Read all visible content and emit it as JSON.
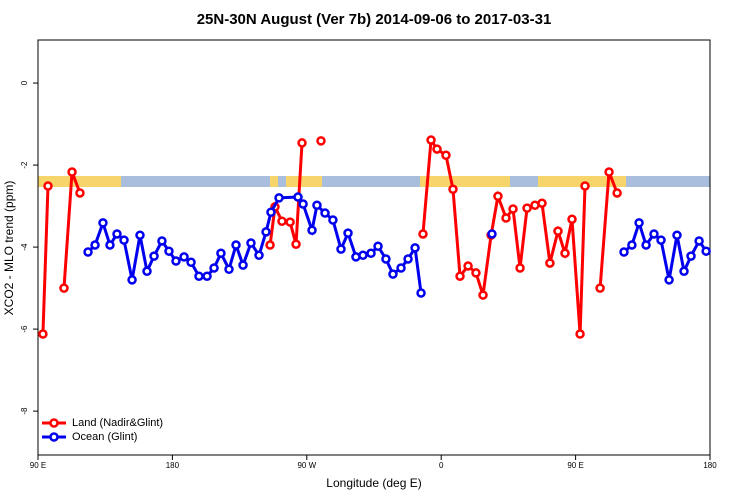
{
  "chart_data": {
    "type": "line",
    "title": "25N-30N August (Ver 7b)   2014-09-06 to 2017-03-31",
    "x_label": "Longitude (deg E)",
    "y_label": "XCO2 - MLO trend (ppm)",
    "xlim": [
      90,
      540
    ],
    "ylim": [
      -9.07,
      1.05
    ],
    "xticks": [
      {
        "value": 90,
        "label": "90 E"
      },
      180,
      {
        "value": 270,
        "label": "90 W"
      },
      {
        "value": 360,
        "label": "0"
      },
      {
        "value": 450,
        "label": "90 E"
      },
      {
        "value": 540,
        "label": "180"
      }
    ],
    "yticks": [
      -8,
      -6,
      -4,
      -2,
      0
    ],
    "legend": "bottom-left",
    "series": [
      {
        "name": "Land (Nadir&Glint)",
        "color": "#ff0000",
        "x": [
          93.3,
          96.7,
          null,
          107.4,
          112.8,
          118.1,
          null,
          245.4,
          248.7,
          253.4,
          258.8,
          262.8,
          266.8,
          null,
          279.5,
          null,
          347.8,
          353.2,
          357.2,
          363.2,
          367.9,
          372.6,
          378.0,
          383.3,
          388.0,
          393.4,
          398.0,
          403.4,
          408.1,
          412.8,
          417.5,
          422.8,
          427.5,
          432.8,
          438.2,
          442.9,
          447.6,
          453.0,
          456.3,
          null,
          466.4,
          472.4,
          477.8
        ],
        "values": [
          -6.12,
          -2.51,
          null,
          -5.0,
          -2.17,
          -2.68,
          null,
          -3.95,
          -3.02,
          -3.37,
          -3.39,
          -3.93,
          -1.46,
          null,
          -1.41,
          null,
          -3.68,
          -1.39,
          -1.61,
          -1.76,
          -2.59,
          -4.71,
          -4.46,
          -4.63,
          -5.17,
          -3.71,
          -2.76,
          -3.29,
          -3.07,
          -4.51,
          -3.05,
          -2.98,
          -2.93,
          -4.39,
          -3.61,
          -4.15,
          -3.32,
          -6.12,
          -2.51,
          null,
          -5.0,
          -2.17,
          -2.68
        ]
      },
      {
        "name": "Ocean (Glint)",
        "color": "#0000ee",
        "x": [
          123.5,
          128.2,
          133.5,
          138.2,
          142.9,
          147.6,
          153.0,
          158.3,
          163.0,
          167.7,
          173.0,
          177.7,
          182.4,
          187.8,
          192.5,
          197.8,
          203.2,
          207.9,
          212.5,
          217.9,
          222.6,
          227.3,
          232.6,
          238.0,
          242.7,
          246.0,
          251.4,
          264.1,
          267.5,
          273.5,
          276.8,
          282.2,
          287.5,
          292.9,
          297.6,
          302.9,
          307.6,
          313.0,
          317.7,
          323.0,
          327.7,
          333.1,
          337.8,
          342.5,
          346.5,
          null,
          394.0,
          null,
          482.4,
          487.7,
          492.5,
          497.2,
          502.5,
          507.2,
          512.6,
          517.9,
          522.6,
          527.3,
          532.7,
          537.4
        ],
        "values": [
          -4.12,
          -3.95,
          -3.41,
          -3.95,
          -3.68,
          -3.83,
          -4.8,
          -3.71,
          -4.59,
          -4.22,
          -3.85,
          -4.1,
          -4.34,
          -4.24,
          -4.37,
          -4.71,
          -4.71,
          -4.51,
          -4.15,
          -4.54,
          -3.95,
          -4.44,
          -3.9,
          -4.2,
          -3.63,
          -3.15,
          -2.8,
          -2.78,
          -2.95,
          -3.59,
          -2.98,
          -3.17,
          -3.34,
          -4.05,
          -3.66,
          -4.24,
          -4.2,
          -4.15,
          -3.98,
          -4.29,
          -4.66,
          -4.51,
          -4.29,
          -4.02,
          -5.12,
          null,
          -3.68,
          null,
          -4.12,
          -3.95,
          -3.41,
          -3.95,
          -3.68,
          -3.83,
          -4.8,
          -3.71,
          -4.59,
          -4.22,
          -3.85,
          -4.1
        ]
      }
    ]
  }
}
